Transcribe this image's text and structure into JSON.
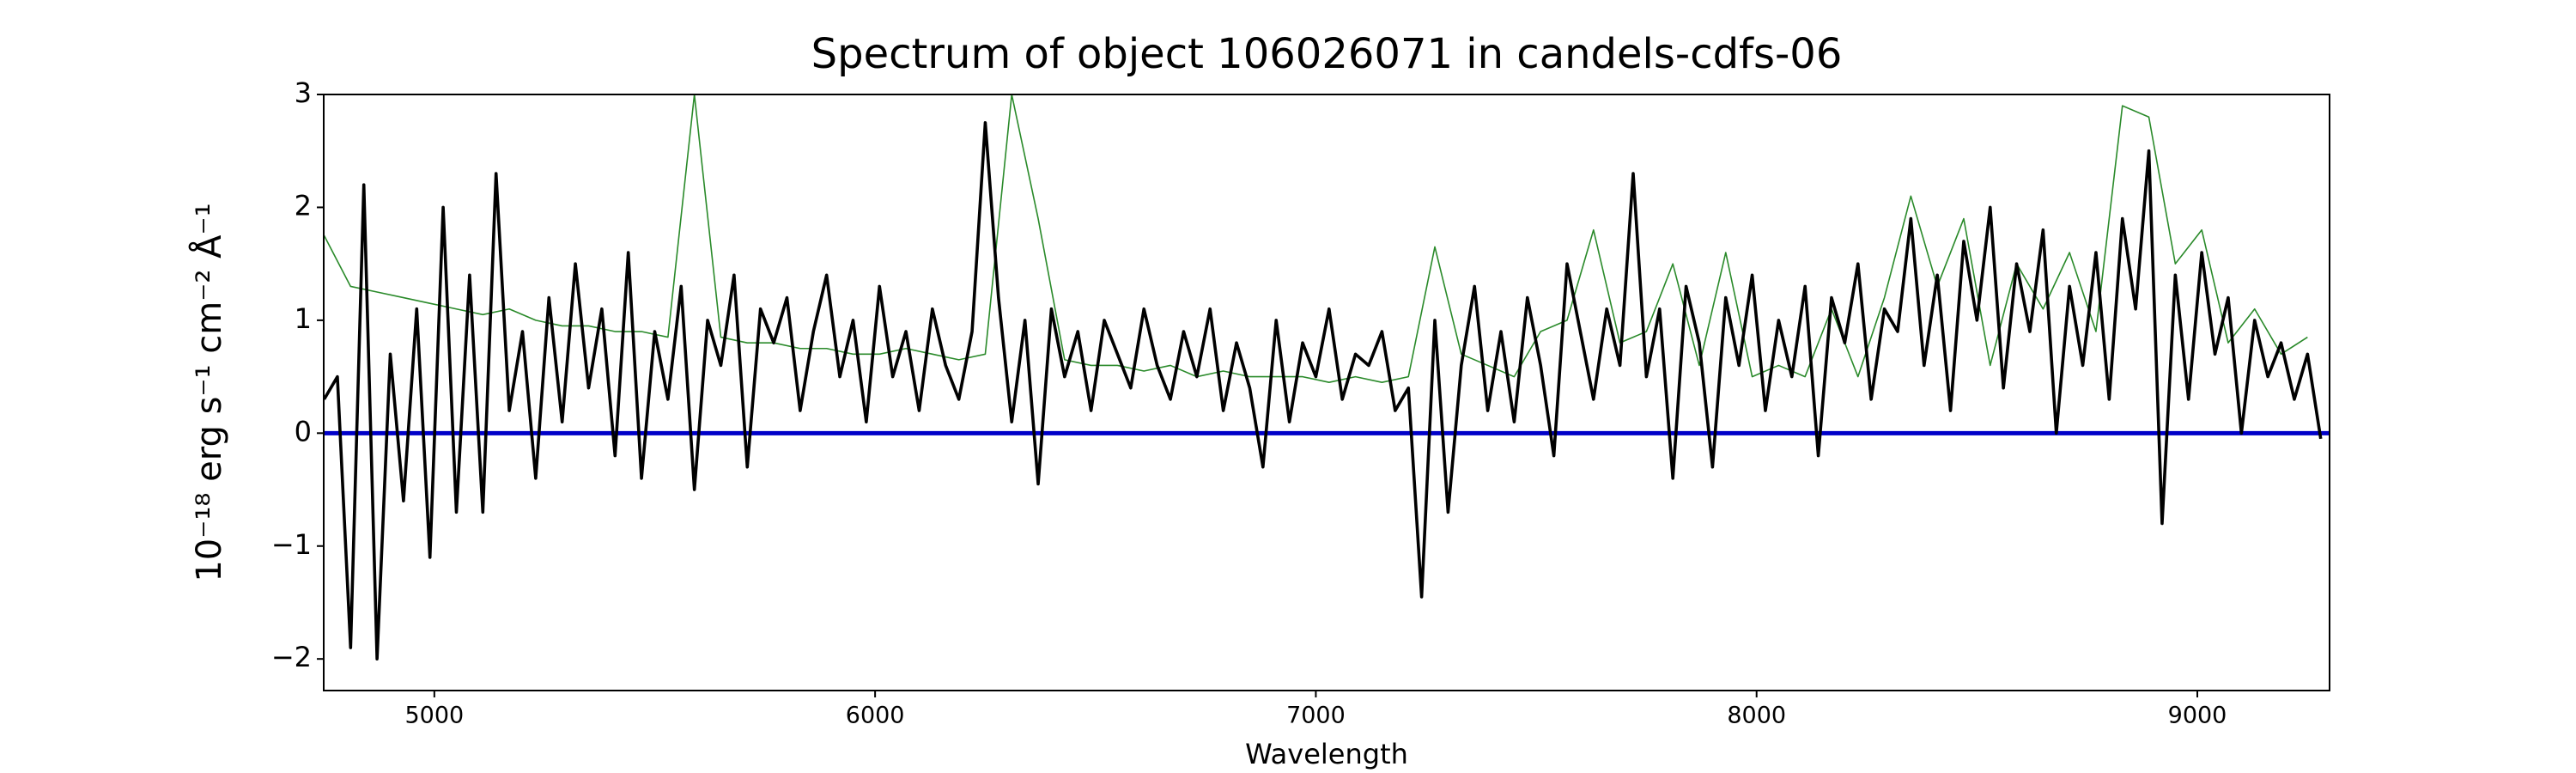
{
  "chart_data": {
    "type": "line",
    "title": "Spectrum of object 106026071 in candels-cdfs-06",
    "x_label": "Wavelength",
    "y_label": "10⁻¹⁸ erg s⁻¹ cm⁻² Å⁻¹",
    "xlim": [
      4749,
      9300
    ],
    "ylim": [
      -2.28,
      3
    ],
    "xticks": [
      5000,
      6000,
      7000,
      8000,
      9000
    ],
    "yticks": [
      {
        "value": -2,
        "label": "−2"
      },
      {
        "value": -1,
        "label": "−1"
      },
      0,
      1,
      2,
      3
    ],
    "grid": false,
    "series": [
      {
        "color": "#2a8a2a",
        "x": [
          4750,
          4810,
          4870,
          4930,
          4990,
          5050,
          5110,
          5170,
          5230,
          5290,
          5350,
          5410,
          5470,
          5530,
          5590,
          5650,
          5710,
          5770,
          5830,
          5890,
          5950,
          6010,
          6070,
          6130,
          6190,
          6250,
          6310,
          6370,
          6430,
          6490,
          6550,
          6610,
          6670,
          6730,
          6790,
          6850,
          6910,
          6970,
          7030,
          7090,
          7150,
          7210,
          7270,
          7330,
          7390,
          7450,
          7510,
          7570,
          7630,
          7690,
          7750,
          7810,
          7870,
          7930,
          7990,
          8050,
          8110,
          8170,
          8230,
          8290,
          8350,
          8410,
          8470,
          8530,
          8590,
          8650,
          8710,
          8770,
          8830,
          8890,
          8950,
          9010,
          9070,
          9130,
          9190,
          9250
        ],
        "values": [
          1.75,
          1.3,
          1.25,
          1.2,
          1.15,
          1.1,
          1.05,
          1.1,
          1.0,
          0.95,
          0.95,
          0.9,
          0.9,
          0.85,
          3.0,
          0.85,
          0.8,
          0.8,
          0.75,
          0.75,
          0.7,
          0.7,
          0.75,
          0.7,
          0.65,
          0.7,
          3.0,
          1.9,
          0.65,
          0.6,
          0.6,
          0.55,
          0.6,
          0.5,
          0.55,
          0.5,
          0.5,
          0.5,
          0.45,
          0.5,
          0.45,
          0.5,
          1.65,
          0.7,
          0.6,
          0.5,
          0.9,
          1.0,
          1.8,
          0.8,
          0.9,
          1.5,
          0.6,
          1.6,
          0.5,
          0.6,
          0.5,
          1.1,
          0.5,
          1.2,
          2.1,
          1.3,
          1.9,
          0.6,
          1.5,
          1.1,
          1.6,
          0.9,
          2.9,
          2.8,
          1.5,
          1.8,
          0.8,
          1.1,
          0.7,
          0.85
        ]
      },
      {
        "color": "#0000c8",
        "x": [
          4749,
          9300
        ],
        "values": [
          0,
          0
        ]
      },
      {
        "color": "#000000",
        "x": [
          4750,
          4780,
          4810,
          4840,
          4870,
          4900,
          4930,
          4960,
          4990,
          5020,
          5050,
          5080,
          5110,
          5140,
          5170,
          5200,
          5230,
          5260,
          5290,
          5320,
          5350,
          5380,
          5410,
          5440,
          5470,
          5500,
          5530,
          5560,
          5590,
          5620,
          5650,
          5680,
          5710,
          5740,
          5770,
          5800,
          5830,
          5860,
          5890,
          5920,
          5950,
          5980,
          6010,
          6040,
          6070,
          6100,
          6130,
          6160,
          6190,
          6220,
          6250,
          6280,
          6310,
          6340,
          6370,
          6400,
          6430,
          6460,
          6490,
          6520,
          6550,
          6580,
          6610,
          6640,
          6670,
          6700,
          6730,
          6760,
          6790,
          6820,
          6850,
          6880,
          6910,
          6940,
          6970,
          7000,
          7030,
          7060,
          7090,
          7120,
          7150,
          7180,
          7210,
          7240,
          7270,
          7300,
          7330,
          7360,
          7390,
          7420,
          7450,
          7480,
          7510,
          7540,
          7570,
          7600,
          7630,
          7660,
          7690,
          7720,
          7750,
          7780,
          7810,
          7840,
          7870,
          7900,
          7930,
          7960,
          7990,
          8020,
          8050,
          8080,
          8110,
          8140,
          8170,
          8200,
          8230,
          8260,
          8290,
          8320,
          8350,
          8380,
          8410,
          8440,
          8470,
          8500,
          8530,
          8560,
          8590,
          8620,
          8650,
          8680,
          8710,
          8740,
          8770,
          8800,
          8830,
          8860,
          8890,
          8920,
          8950,
          8980,
          9010,
          9040,
          9070,
          9100,
          9130,
          9160,
          9190,
          9220,
          9250,
          9280
        ],
        "values": [
          0.3,
          0.5,
          -1.9,
          2.2,
          -2.0,
          0.7,
          -0.6,
          1.1,
          -1.1,
          2.0,
          -0.7,
          1.4,
          -0.7,
          2.3,
          0.2,
          0.9,
          -0.4,
          1.2,
          0.1,
          1.5,
          0.4,
          1.1,
          -0.2,
          1.6,
          -0.4,
          0.9,
          0.3,
          1.3,
          -0.5,
          1.0,
          0.6,
          1.4,
          -0.3,
          1.1,
          0.8,
          1.2,
          0.2,
          0.9,
          1.4,
          0.5,
          1.0,
          0.1,
          1.3,
          0.5,
          0.9,
          0.2,
          1.1,
          0.6,
          0.3,
          0.9,
          2.75,
          1.2,
          0.1,
          1.0,
          -0.45,
          1.1,
          0.5,
          0.9,
          0.2,
          1.0,
          0.7,
          0.4,
          1.1,
          0.6,
          0.3,
          0.9,
          0.5,
          1.1,
          0.2,
          0.8,
          0.4,
          -0.3,
          1.0,
          0.1,
          0.8,
          0.5,
          1.1,
          0.3,
          0.7,
          0.6,
          0.9,
          0.2,
          0.4,
          -1.45,
          1.0,
          -0.7,
          0.6,
          1.3,
          0.2,
          0.9,
          0.1,
          1.2,
          0.6,
          -0.2,
          1.5,
          0.9,
          0.3,
          1.1,
          0.6,
          2.3,
          0.5,
          1.1,
          -0.4,
          1.3,
          0.8,
          -0.3,
          1.2,
          0.6,
          1.4,
          0.2,
          1.0,
          0.5,
          1.3,
          -0.2,
          1.2,
          0.8,
          1.5,
          0.3,
          1.1,
          0.9,
          1.9,
          0.6,
          1.4,
          0.2,
          1.7,
          1.0,
          2.0,
          0.4,
          1.5,
          0.9,
          1.8,
          0.0,
          1.3,
          0.6,
          1.6,
          0.3,
          1.9,
          1.1,
          2.5,
          -0.8,
          1.4,
          0.3,
          1.6,
          0.7,
          1.2,
          0.0,
          1.0,
          0.5,
          0.8,
          0.3,
          0.7,
          -0.05
        ]
      }
    ]
  }
}
